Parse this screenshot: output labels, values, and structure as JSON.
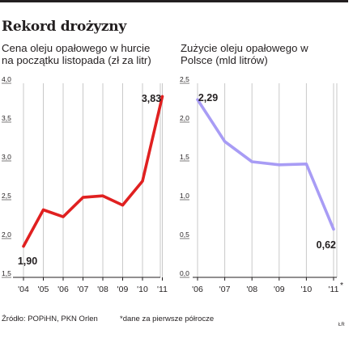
{
  "header": {
    "title": "Rekord drożyzny"
  },
  "footer": {
    "source": "Źródło: POPiHN, PKN Orlen",
    "note": "*dane za pierwsze półrocze",
    "signature": "ŁR"
  },
  "colors": {
    "left_series": "#e02020",
    "right_series": "#a89cf5",
    "grid": "#c9c9c9",
    "axis": "#231f20"
  },
  "chart_data": [
    {
      "type": "line",
      "title": "Cena oleju opałowego w hurcie na początku listopada (zł za litr)",
      "x": [
        "'04",
        "'05",
        "'06",
        "'07",
        "'08",
        "'09",
        "'10",
        "'11"
      ],
      "series": [
        {
          "values": [
            1.9,
            2.37,
            2.28,
            2.53,
            2.55,
            2.43,
            2.74,
            3.83
          ]
        }
      ],
      "ylim": [
        1.5,
        4.0
      ],
      "yticks": [
        "1,5",
        "2,0",
        "2,5",
        "3,0",
        "3,5",
        "4,0"
      ],
      "data_labels": {
        "first": "1,90",
        "last": "3,83"
      },
      "grid": "vertical"
    },
    {
      "type": "line",
      "title": "Zużycie oleju opałowego w Polsce (mld litrów)",
      "x": [
        "'06",
        "'07",
        "'08",
        "'09",
        "'10",
        "'11"
      ],
      "x_note": "*",
      "series": [
        {
          "values": [
            2.29,
            1.75,
            1.49,
            1.45,
            1.46,
            0.62
          ]
        }
      ],
      "ylim": [
        0.0,
        2.5
      ],
      "yticks": [
        "0,0",
        "0,5",
        "1,0",
        "1,5",
        "2,0",
        "2,5"
      ],
      "data_labels": {
        "first": "2,29",
        "last": "0,62"
      },
      "grid": "vertical"
    }
  ]
}
